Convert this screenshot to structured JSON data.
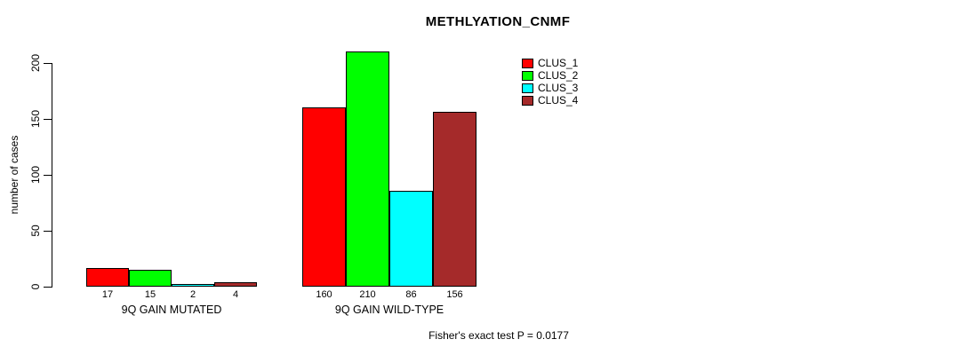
{
  "title": "METHLYATION_CNMF",
  "footnote": "Fisher's exact test P = 0.0177",
  "chart_data": {
    "type": "bar",
    "title": "METHLYATION_CNMF",
    "categories": [
      "9Q GAIN MUTATED",
      "9Q GAIN WILD-TYPE"
    ],
    "series": [
      {
        "name": "CLUS_1",
        "color": "#ff0000",
        "values": [
          17,
          160
        ]
      },
      {
        "name": "CLUS_2",
        "color": "#00ff00",
        "values": [
          15,
          210
        ]
      },
      {
        "name": "CLUS_3",
        "color": "#00ffff",
        "values": [
          2,
          86
        ]
      },
      {
        "name": "CLUS_4",
        "color": "#a52a2a",
        "values": [
          4,
          156
        ]
      }
    ],
    "xlabel": "",
    "ylabel": "number of cases",
    "ylim": [
      0,
      210
    ],
    "yticks": [
      0,
      50,
      100,
      150,
      200
    ],
    "legend_entries": [
      "CLUS_1",
      "CLUS_2",
      "CLUS_3",
      "CLUS_4"
    ],
    "legend_position": "top-right",
    "grid": false,
    "bar_border_color": "#000000",
    "bar_value_labels_shown": true,
    "annotation": "Fisher's exact test P = 0.0177"
  }
}
